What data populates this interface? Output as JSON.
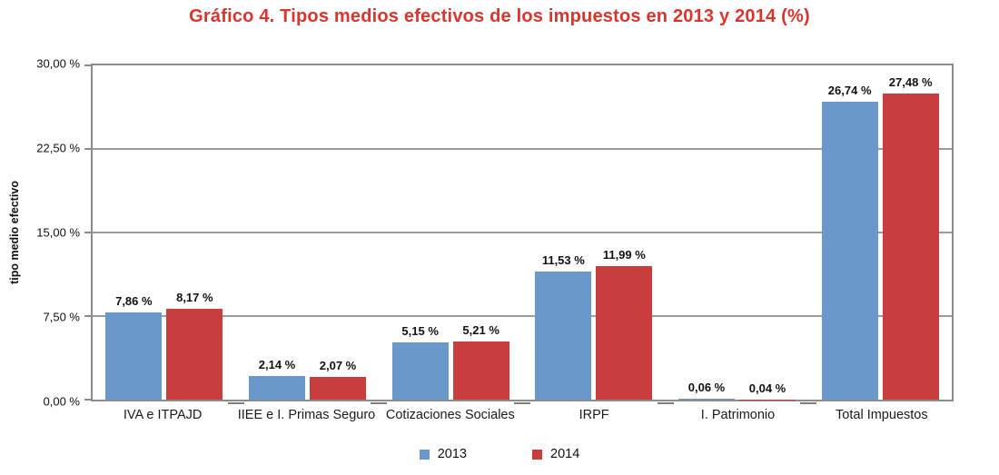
{
  "chart_data": {
    "type": "bar",
    "title": "Gráfico 4. Tipos medios efectivos de los impuestos en 2013 y 2014 (%)",
    "ylabel": "tipo medio efectivo",
    "ylim": [
      0,
      30
    ],
    "grid": true,
    "legend_position": "bottom",
    "yticks": [
      {
        "value": 0,
        "label": "0,00 %"
      },
      {
        "value": 7.5,
        "label": "7,50 %"
      },
      {
        "value": 15,
        "label": "15,00 %"
      },
      {
        "value": 22.5,
        "label": "22,50 %"
      },
      {
        "value": 30,
        "label": "30,00 %"
      }
    ],
    "categories": [
      "IVA e ITPAJD",
      "IIEE e I. Primas Seguro",
      "Cotizaciones Sociales",
      "IRPF",
      "I. Patrimonio",
      "Total Impuestos"
    ],
    "series": [
      {
        "name": "2013",
        "color": "#6a98ca",
        "values": [
          7.86,
          2.14,
          5.15,
          11.53,
          0.06,
          26.74
        ],
        "labels": [
          "7,86 %",
          "2,14 %",
          "5,15 %",
          "11,53 %",
          "0,06 %",
          "26,74 %"
        ]
      },
      {
        "name": "2014",
        "color": "#c83e3d",
        "values": [
          8.17,
          2.07,
          5.21,
          11.99,
          0.04,
          27.48
        ],
        "labels": [
          "8,17 %",
          "2,07 %",
          "5,21 %",
          "11,99 %",
          "0,04 %",
          "27,48 %"
        ]
      }
    ],
    "colors": {
      "title": "#d9352f",
      "axis": "#8b8b8b",
      "grid": "#9b9b9b",
      "text": "#111111"
    }
  }
}
